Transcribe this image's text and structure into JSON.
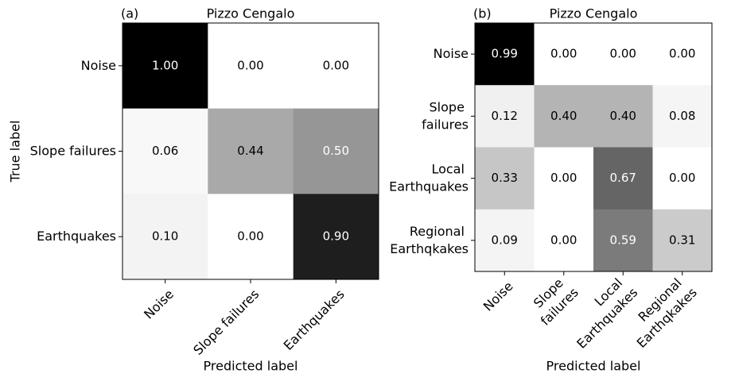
{
  "chart_data": [
    {
      "type": "heatmap",
      "panel_label": "(a)",
      "title": "Pizzo Cengalo",
      "x_label": "Predicted label",
      "y_label": "True label",
      "cmap": "Greys",
      "wrap_labels": false,
      "x_categories": [
        "Noise",
        "Slope failures",
        "Earthquakes"
      ],
      "y_categories": [
        "Noise",
        "Slope failures",
        "Earthquakes"
      ],
      "values": [
        [
          1,
          0,
          0
        ],
        [
          0.06,
          0.44,
          0.5
        ],
        [
          0.1,
          0,
          0.9
        ]
      ],
      "value_labels": [
        [
          "1.00",
          "0.00",
          "0.00"
        ],
        [
          "0.06",
          "0.44",
          "0.50"
        ],
        [
          "0.10",
          "0.00",
          "0.90"
        ]
      ]
    },
    {
      "type": "heatmap",
      "panel_label": "(b)",
      "title": "Pizzo Cengalo",
      "x_label": "Predicted label",
      "cmap": "Greys",
      "wrap_labels": true,
      "x_categories": [
        "Noise",
        "Slope failures",
        "Local Earthquakes",
        "Regional Earthqkakes"
      ],
      "y_categories": [
        "Noise",
        "Slope failures",
        "Local Earthquakes",
        "Regional Earthqkakes"
      ],
      "values": [
        [
          0.99,
          0,
          0,
          0
        ],
        [
          0.12,
          0.4,
          0.4,
          0.08
        ],
        [
          0.33,
          0,
          0.67,
          0
        ],
        [
          0.09,
          0,
          0.59,
          0.31
        ]
      ],
      "value_labels": [
        [
          "0.99",
          "0.00",
          "0.00",
          "0.00"
        ],
        [
          "0.12",
          "0.40",
          "0.40",
          "0.08"
        ],
        [
          "0.33",
          "0.00",
          "0.67",
          "0.00"
        ],
        [
          "0.09",
          "0.00",
          "0.59",
          "0.31"
        ]
      ]
    }
  ]
}
